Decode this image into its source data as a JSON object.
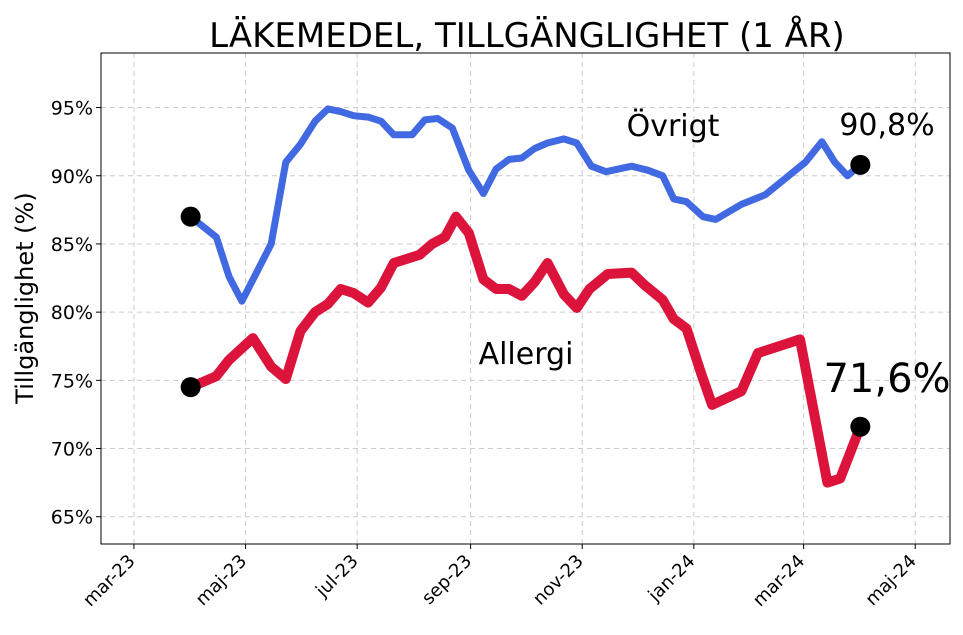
{
  "chart_data": {
    "type": "line",
    "title": "LÄKEMEDEL, TILLGÄNGLIGHET (1 ÅR)",
    "xlabel": "",
    "ylabel": "Tillgänglighet (%)",
    "x_tick_labels": [
      "mar-23",
      "maj-23",
      "jul-23",
      "sep-23",
      "nov-23",
      "jan-24",
      "mar-24",
      "maj-24"
    ],
    "x_ticks": [
      "2023-03-01",
      "2023-05-01",
      "2023-07-01",
      "2023-09-01",
      "2023-11-01",
      "2024-01-01",
      "2024-03-01",
      "2024-05-01"
    ],
    "xlim": [
      "2023-02-11",
      "2024-05-20"
    ],
    "y_tick_labels": [
      "65%",
      "70%",
      "75%",
      "80%",
      "85%",
      "90%",
      "95%"
    ],
    "y_ticks": [
      65,
      70,
      75,
      80,
      85,
      90,
      95
    ],
    "ylim": [
      63,
      99
    ],
    "grid": true,
    "series": [
      {
        "name": "Övrigt",
        "color": "#4169E1",
        "end_label": "90,8%",
        "points": [
          [
            "2023-04-01",
            87.0
          ],
          [
            "2023-04-15",
            85.5
          ],
          [
            "2023-04-22",
            82.6
          ],
          [
            "2023-04-29",
            80.8
          ],
          [
            "2023-05-15",
            85.0
          ],
          [
            "2023-05-23",
            91.0
          ],
          [
            "2023-05-31",
            92.3
          ],
          [
            "2023-06-08",
            94.0
          ],
          [
            "2023-06-15",
            94.9
          ],
          [
            "2023-06-22",
            94.7
          ],
          [
            "2023-06-29",
            94.4
          ],
          [
            "2023-07-07",
            94.3
          ],
          [
            "2023-07-14",
            94.0
          ],
          [
            "2023-07-21",
            93.0
          ],
          [
            "2023-07-31",
            93.0
          ],
          [
            "2023-08-07",
            94.1
          ],
          [
            "2023-08-14",
            94.2
          ],
          [
            "2023-08-22",
            93.5
          ],
          [
            "2023-08-31",
            90.4
          ],
          [
            "2023-09-08",
            88.7
          ],
          [
            "2023-09-15",
            90.5
          ],
          [
            "2023-09-22",
            91.2
          ],
          [
            "2023-09-29",
            91.3
          ],
          [
            "2023-10-06",
            92.0
          ],
          [
            "2023-10-13",
            92.4
          ],
          [
            "2023-10-22",
            92.7
          ],
          [
            "2023-10-29",
            92.4
          ],
          [
            "2023-11-06",
            90.7
          ],
          [
            "2023-11-14",
            90.3
          ],
          [
            "2023-11-21",
            90.5
          ],
          [
            "2023-11-28",
            90.7
          ],
          [
            "2023-12-07",
            90.4
          ],
          [
            "2023-12-15",
            90.0
          ],
          [
            "2023-12-21",
            88.3
          ],
          [
            "2023-12-28",
            88.1
          ],
          [
            "2024-01-06",
            87.0
          ],
          [
            "2024-01-13",
            86.8
          ],
          [
            "2024-01-27",
            87.9
          ],
          [
            "2024-02-09",
            88.6
          ],
          [
            "2024-03-02",
            91.0
          ],
          [
            "2024-03-11",
            92.5
          ],
          [
            "2024-03-18",
            91.0
          ],
          [
            "2024-03-25",
            90.0
          ],
          [
            "2024-04-01",
            90.8
          ]
        ]
      },
      {
        "name": "Allergi",
        "color": "#DC143C",
        "end_label": "71,6%",
        "points": [
          [
            "2023-04-01",
            74.5
          ],
          [
            "2023-04-15",
            75.3
          ],
          [
            "2023-04-22",
            76.5
          ],
          [
            "2023-05-05",
            78.1
          ],
          [
            "2023-05-15",
            76.0
          ],
          [
            "2023-05-23",
            75.1
          ],
          [
            "2023-05-31",
            78.6
          ],
          [
            "2023-06-08",
            80.0
          ],
          [
            "2023-06-15",
            80.6
          ],
          [
            "2023-06-22",
            81.7
          ],
          [
            "2023-06-29",
            81.4
          ],
          [
            "2023-07-07",
            80.7
          ],
          [
            "2023-07-14",
            81.8
          ],
          [
            "2023-07-21",
            83.6
          ],
          [
            "2023-08-04",
            84.2
          ],
          [
            "2023-08-11",
            85.0
          ],
          [
            "2023-08-18",
            85.5
          ],
          [
            "2023-08-24",
            87.0
          ],
          [
            "2023-08-31",
            85.8
          ],
          [
            "2023-09-08",
            82.4
          ],
          [
            "2023-09-15",
            81.7
          ],
          [
            "2023-09-22",
            81.7
          ],
          [
            "2023-09-29",
            81.2
          ],
          [
            "2023-10-06",
            82.2
          ],
          [
            "2023-10-13",
            83.6
          ],
          [
            "2023-10-22",
            81.3
          ],
          [
            "2023-10-29",
            80.3
          ],
          [
            "2023-11-05",
            81.7
          ],
          [
            "2023-11-15",
            82.8
          ],
          [
            "2023-11-28",
            82.9
          ],
          [
            "2023-12-05",
            82.0
          ],
          [
            "2023-12-15",
            80.9
          ],
          [
            "2023-12-21",
            79.5
          ],
          [
            "2023-12-28",
            78.8
          ],
          [
            "2024-01-05",
            75.5
          ],
          [
            "2024-01-11",
            73.2
          ],
          [
            "2024-01-27",
            74.2
          ],
          [
            "2024-02-05",
            77.0
          ],
          [
            "2024-02-28",
            78.0
          ],
          [
            "2024-03-14",
            67.5
          ],
          [
            "2024-03-21",
            67.8
          ],
          [
            "2024-04-01",
            71.6
          ]
        ]
      }
    ]
  }
}
